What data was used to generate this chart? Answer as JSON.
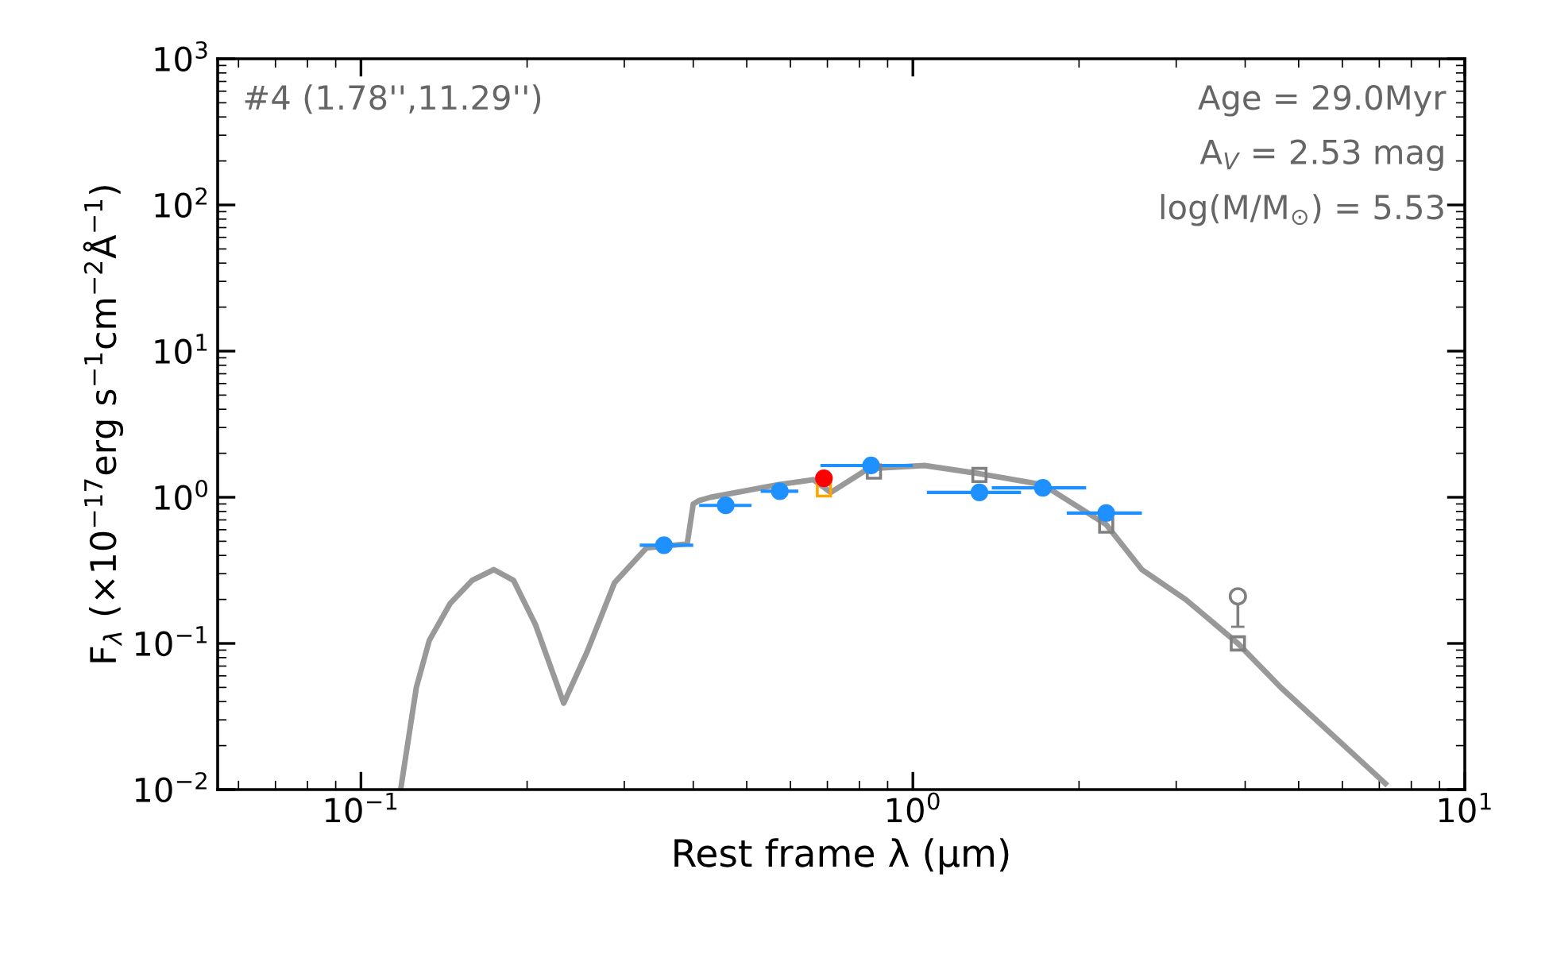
{
  "chart_data": {
    "type": "line",
    "xlabel": "Rest frame λ (μm)",
    "ylabel": "F$_{λ}$ (×10$^{−17}$erg s$^{−1}$cm$^{−2}$Å$^{−1}$)",
    "log": "xy",
    "xlim": [
      0.055,
      10
    ],
    "ylim": [
      0.01,
      1000
    ],
    "xticks": [
      {
        "value": 0.1,
        "label": "10$^{−1}$"
      },
      {
        "value": 1,
        "label": "10$^{0}$"
      },
      {
        "value": 10,
        "label": "10$^{1}$"
      }
    ],
    "yticks": [
      {
        "value": 0.01,
        "label": "10$^{−2}$"
      },
      {
        "value": 0.1,
        "label": "10$^{−1}$"
      },
      {
        "value": 1,
        "label": "10$^{0}$"
      },
      {
        "value": 10,
        "label": "10$^{1}$"
      },
      {
        "value": 100,
        "label": "10$^{2}$"
      },
      {
        "value": 1000,
        "label": "10$^{3}$"
      }
    ],
    "grid": false,
    "legend": false,
    "line_style": "solid",
    "annotations": [
      "#4 (1.78'',11.29'')",
      "Age = 29.0Myr",
      "A$_{V}$ = 2.53 mag",
      "log(M/M$_{⊙}$) = 5.53"
    ],
    "series": [
      {
        "color": "#999999",
        "marker": "none",
        "x": [
          0.118,
          0.126,
          0.133,
          0.145,
          0.159,
          0.174,
          0.189,
          0.207,
          0.233,
          0.257,
          0.288,
          0.329,
          0.39,
          0.4,
          0.41,
          0.43,
          0.57,
          0.66,
          0.71,
          0.83,
          1.05,
          1.32,
          1.72,
          2.24,
          2.6,
          3.12,
          3.88,
          4.64,
          7.18
        ],
        "values": [
          0.01,
          0.05,
          0.105,
          0.187,
          0.27,
          0.32,
          0.27,
          0.135,
          0.039,
          0.088,
          0.26,
          0.45,
          0.48,
          0.9,
          0.95,
          1.0,
          1.22,
          1.32,
          1.08,
          1.57,
          1.65,
          1.45,
          1.22,
          0.65,
          0.32,
          0.2,
          0.1,
          0.05,
          0.011
        ]
      },
      {
        "type": "scatter",
        "color": "#808080",
        "marker": "square",
        "x": [
          0.85,
          1.32,
          2.24,
          3.88
        ],
        "values": [
          1.5,
          1.42,
          0.64,
          0.1
        ]
      },
      {
        "type": "scatter",
        "color": "#ffa500",
        "marker": "square",
        "x": [
          0.69
        ],
        "values": [
          1.13
        ]
      },
      {
        "type": "scatter",
        "color": "#1e90ff",
        "marker": "circle",
        "x": [
          0.354,
          0.458,
          0.574,
          0.84,
          1.32,
          1.72,
          2.24
        ],
        "values": [
          0.47,
          0.88,
          1.1,
          1.65,
          1.08,
          1.16,
          0.78
        ],
        "xerrors": [
          [
            0.32,
            0.4
          ],
          [
            0.41,
            0.51
          ],
          [
            0.53,
            0.62
          ],
          [
            0.68,
            1.0
          ],
          [
            1.06,
            1.57
          ],
          [
            1.39,
            2.06
          ],
          [
            1.9,
            2.6
          ]
        ]
      },
      {
        "type": "scatter",
        "color": "#ff0000",
        "marker": "circle",
        "x": [
          0.69
        ],
        "values": [
          1.35
        ]
      },
      {
        "type": "scatter",
        "color": "#808080",
        "marker": "circle",
        "x": [
          3.88
        ],
        "values": [
          0.21
        ],
        "errors": [
          [
            0.13,
            0.21
          ]
        ]
      }
    ]
  }
}
